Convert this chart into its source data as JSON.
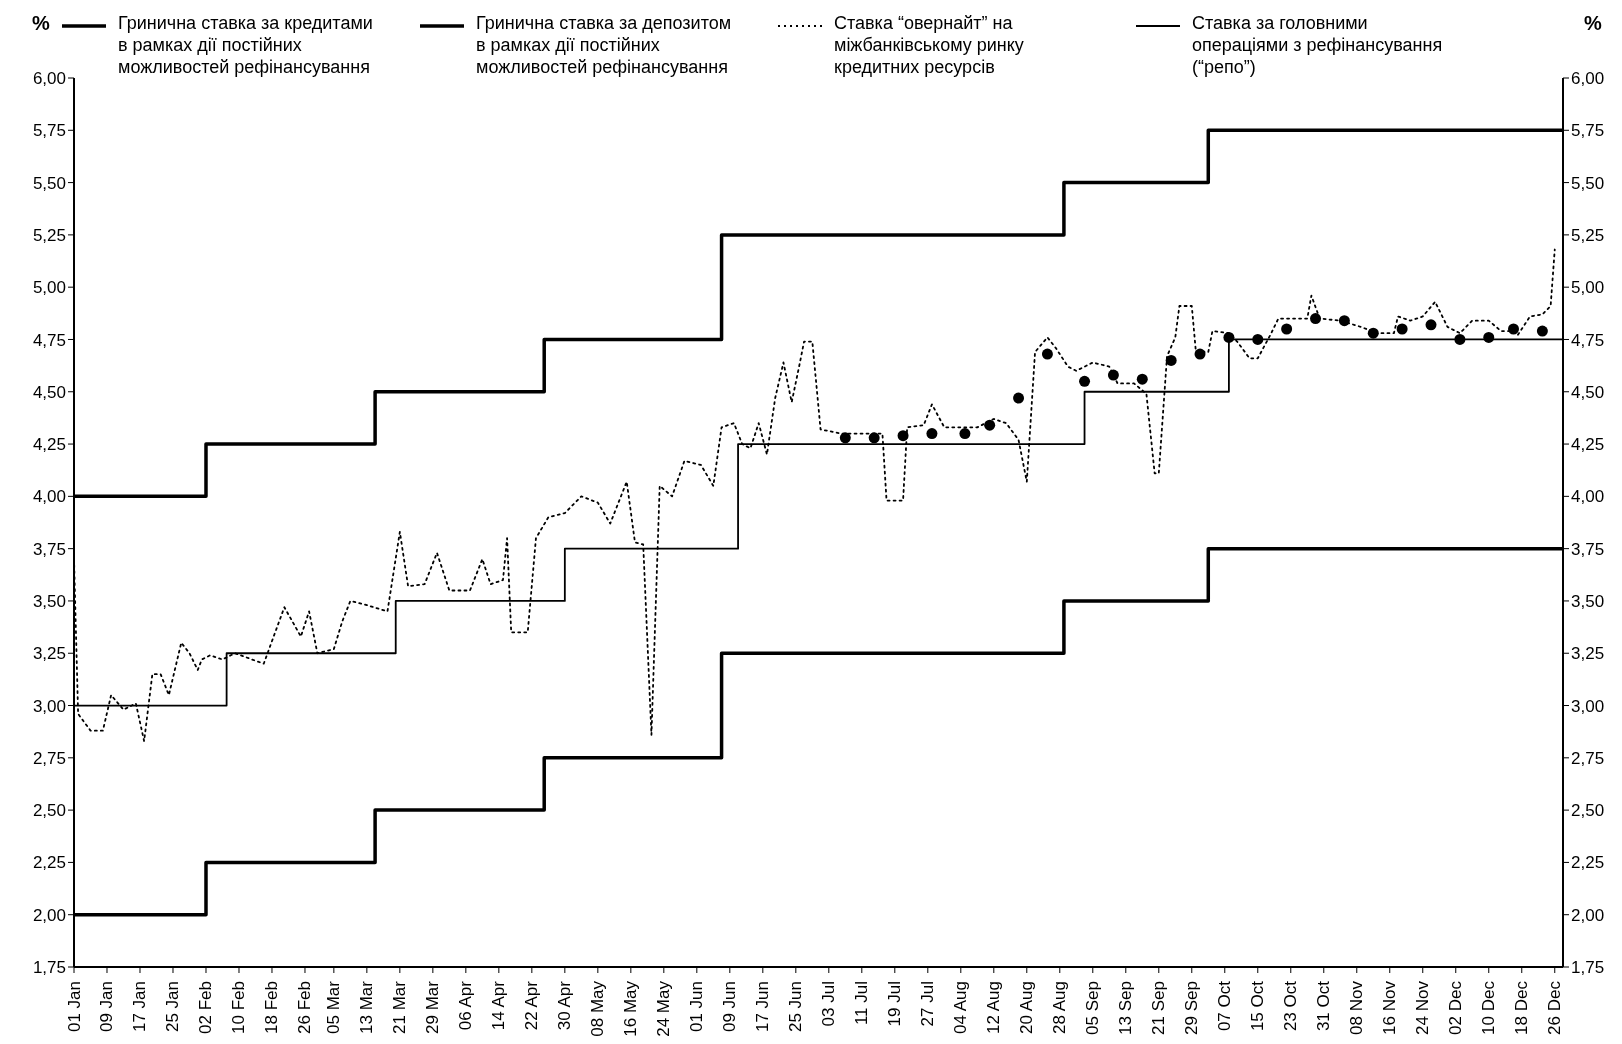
{
  "chart_data": {
    "type": "step",
    "ylabel": "%",
    "y2label": "%",
    "legend": "top",
    "xlim": [
      "--01-01",
      "--12-28"
    ],
    "xticks": [
      {
        "value": "--01-01",
        "label": "01 Jan"
      },
      {
        "value": "--01-09",
        "label": "09 Jan"
      },
      {
        "value": "--01-17",
        "label": "17 Jan"
      },
      {
        "value": "--01-25",
        "label": "25 Jan"
      },
      {
        "value": "--02-02",
        "label": "02 Feb"
      },
      {
        "value": "--02-10",
        "label": "10 Feb"
      },
      {
        "value": "--02-18",
        "label": "18 Feb"
      },
      {
        "value": "--02-26",
        "label": "26 Feb"
      },
      {
        "value": "--03-05",
        "label": "05 Mar"
      },
      {
        "value": "--03-13",
        "label": "13 Mar"
      },
      {
        "value": "--03-21",
        "label": "21 Mar"
      },
      {
        "value": "--03-29",
        "label": "29 Mar"
      },
      {
        "value": "--04-06",
        "label": "06 Apr"
      },
      {
        "value": "--04-14",
        "label": "14 Apr"
      },
      {
        "value": "--04-22",
        "label": "22 Apr"
      },
      {
        "value": "--04-30",
        "label": "30 Apr"
      },
      {
        "value": "--05-08",
        "label": "08 May"
      },
      {
        "value": "--05-16",
        "label": "16 May"
      },
      {
        "value": "--05-24",
        "label": "24 May"
      },
      {
        "value": "--06-01",
        "label": "01 Jun"
      },
      {
        "value": "--06-09",
        "label": "09 Jun"
      },
      {
        "value": "--06-17",
        "label": "17 Jun"
      },
      {
        "value": "--06-25",
        "label": "25 Jun"
      },
      {
        "value": "--07-03",
        "label": "03 Jul"
      },
      {
        "value": "--07-11",
        "label": "11 Jul"
      },
      {
        "value": "--07-19",
        "label": "19 Jul"
      },
      {
        "value": "--07-27",
        "label": "27 Jul"
      },
      {
        "value": "--08-04",
        "label": "04 Aug"
      },
      {
        "value": "--08-12",
        "label": "12 Aug"
      },
      {
        "value": "--08-20",
        "label": "20 Aug"
      },
      {
        "value": "--08-28",
        "label": "28 Aug"
      },
      {
        "value": "--09-05",
        "label": "05 Sep"
      },
      {
        "value": "--09-13",
        "label": "13 Sep"
      },
      {
        "value": "--09-21",
        "label": "21 Sep"
      },
      {
        "value": "--09-29",
        "label": "29 Sep"
      },
      {
        "value": "--10-07",
        "label": "07 Oct"
      },
      {
        "value": "--10-15",
        "label": "15 Oct"
      },
      {
        "value": "--10-23",
        "label": "23 Oct"
      },
      {
        "value": "--10-31",
        "label": "31 Oct"
      },
      {
        "value": "--11-08",
        "label": "08 Nov"
      },
      {
        "value": "--11-16",
        "label": "16 Nov"
      },
      {
        "value": "--11-24",
        "label": "24 Nov"
      },
      {
        "value": "--12-02",
        "label": "02 Dec"
      },
      {
        "value": "--12-10",
        "label": "10 Dec"
      },
      {
        "value": "--12-18",
        "label": "18 Dec"
      },
      {
        "value": "--12-26",
        "label": "26 Dec"
      }
    ],
    "ylim": [
      1.75,
      6
    ],
    "yticks": [
      {
        "value": 1.75,
        "label": "1,75"
      },
      {
        "value": 2,
        "label": "2,00"
      },
      {
        "value": 2.25,
        "label": "2,25"
      },
      {
        "value": 2.5,
        "label": "2,50"
      },
      {
        "value": 2.75,
        "label": "2,75"
      },
      {
        "value": 3,
        "label": "3,00"
      },
      {
        "value": 3.25,
        "label": "3,25"
      },
      {
        "value": 3.5,
        "label": "3,50"
      },
      {
        "value": 3.75,
        "label": "3,75"
      },
      {
        "value": 4,
        "label": "4,00"
      },
      {
        "value": 4.25,
        "label": "4,25"
      },
      {
        "value": 4.5,
        "label": "4,50"
      },
      {
        "value": 4.75,
        "label": "4,75"
      },
      {
        "value": 5,
        "label": "5,00"
      },
      {
        "value": 5.25,
        "label": "5,25"
      },
      {
        "value": 5.5,
        "label": "5,50"
      },
      {
        "value": 5.75,
        "label": "5,75"
      },
      {
        "value": 6,
        "label": "6,00"
      }
    ],
    "y2lim": [
      1.75,
      6
    ],
    "y2ticks": [
      {
        "value": 1.75,
        "label": "1,75"
      },
      {
        "value": 2,
        "label": "2,00"
      },
      {
        "value": 2.25,
        "label": "2,25"
      },
      {
        "value": 2.5,
        "label": "2,50"
      },
      {
        "value": 2.75,
        "label": "2,75"
      },
      {
        "value": 3,
        "label": "3,00"
      },
      {
        "value": 3.25,
        "label": "3,25"
      },
      {
        "value": 3.5,
        "label": "3,50"
      },
      {
        "value": 3.75,
        "label": "3,75"
      },
      {
        "value": 4,
        "label": "4,00"
      },
      {
        "value": 4.25,
        "label": "4,25"
      },
      {
        "value": 4.5,
        "label": "4,50"
      },
      {
        "value": 4.75,
        "label": "4,75"
      },
      {
        "value": 5,
        "label": "5,00"
      },
      {
        "value": 5.25,
        "label": "5,25"
      },
      {
        "value": 5.5,
        "label": "5,50"
      },
      {
        "value": 5.75,
        "label": "5,75"
      },
      {
        "value": 6,
        "label": "6,00"
      }
    ],
    "series": [
      {
        "name": "Гринична ставка за кредитами в рамках дії постійних можливостей рефінансування",
        "color": "#000000",
        "line_style": "solid",
        "x": [
          "--01-01",
          "--02-02",
          "--03-15",
          "--04-25",
          "--06-07",
          "--08-29",
          "--10-03",
          "--12-28"
        ],
        "values": [
          4,
          4.25,
          4.5,
          4.75,
          5.25,
          5.5,
          5.75,
          5.75
        ]
      },
      {
        "name": "Гринична ставка за депозитом в рамках дії постійних можливостей рефінансування",
        "color": "#000000",
        "line_style": "solid",
        "x": [
          "--01-01",
          "--02-02",
          "--03-15",
          "--04-25",
          "--06-07",
          "--08-29",
          "--10-03",
          "--12-28"
        ],
        "values": [
          2,
          2.25,
          2.5,
          2.75,
          3.25,
          3.5,
          3.75,
          3.75
        ]
      },
      {
        "name": "Ставка “овернайт” на міжбанківському ринку кредитних ресурсів",
        "type": "line",
        "color": "#000000",
        "line_style": "dotted",
        "x": [
          "--01-01",
          "--01-02",
          "--01-05",
          "--01-08",
          "--01-10",
          "--01-13",
          "--01-16",
          "--01-18",
          "--01-20",
          "--01-22",
          "--01-24",
          "--01-27",
          "--01-29",
          "--01-31",
          "--02-01",
          "--02-03",
          "--02-06",
          "--02-09",
          "--02-16",
          "--02-21",
          "--02-25",
          "--02-27",
          "--03-01",
          "--03-05",
          "--03-07",
          "--03-09",
          "--03-13",
          "--03-18",
          "--03-21",
          "--03-23",
          "--03-27",
          "--03-30",
          "--04-02",
          "--04-07",
          "--04-10",
          "--04-12",
          "--04-15",
          "--04-16",
          "--04-17",
          "--04-21",
          "--04-23",
          "--04-26",
          "--04-30",
          "--05-04",
          "--05-08",
          "--05-11",
          "--05-15",
          "--05-17",
          "--05-19",
          "--05-21",
          "--05-23",
          "--05-26",
          "--05-29",
          "--06-02",
          "--06-05",
          "--06-07",
          "--06-10",
          "--06-12",
          "--06-14",
          "--06-16",
          "--06-18",
          "--06-20",
          "--06-22",
          "--06-24",
          "--06-26",
          "--06-27",
          "--06-29",
          "--07-01",
          "--07-06",
          "--07-12",
          "--07-16",
          "--07-17",
          "--07-21",
          "--07-22",
          "--07-26",
          "--07-28",
          "--07-31",
          "--08-08",
          "--08-12",
          "--08-15",
          "--08-18",
          "--08-20",
          "--08-22",
          "--08-25",
          "--08-27",
          "--08-30",
          "--09-01",
          "--09-05",
          "--09-09",
          "--09-11",
          "--09-15",
          "--09-18",
          "--09-20",
          "--09-21",
          "--09-23",
          "--09-25",
          "--09-26",
          "--09-29",
          "--09-30",
          "--10-03",
          "--10-04",
          "--10-08",
          "--10-10",
          "--10-13",
          "--10-15",
          "--10-18",
          "--10-20",
          "--10-27",
          "--10-28",
          "--10-30",
          "--11-04",
          "--11-09",
          "--11-13",
          "--11-17",
          "--11-18",
          "--11-21",
          "--11-24",
          "--11-27",
          "--11-30",
          "--12-03",
          "--12-06",
          "--12-10",
          "--12-13",
          "--12-16",
          "--12-17",
          "--12-20",
          "--12-23",
          "--12-25",
          "--12-26"
        ],
        "values": [
          3.7,
          2.96,
          2.88,
          2.88,
          3.05,
          2.98,
          3.01,
          2.83,
          3.15,
          3.15,
          3.05,
          3.3,
          3.25,
          3.17,
          3.22,
          3.24,
          3.22,
          3.25,
          3.2,
          3.47,
          3.33,
          3.45,
          3.25,
          3.27,
          3.4,
          3.5,
          3.48,
          3.45,
          3.83,
          3.57,
          3.58,
          3.73,
          3.55,
          3.55,
          3.7,
          3.58,
          3.6,
          3.8,
          3.35,
          3.35,
          3.8,
          3.9,
          3.92,
          4.0,
          3.97,
          3.87,
          4.07,
          3.78,
          3.77,
          2.86,
          4.05,
          4.0,
          4.17,
          4.15,
          4.05,
          4.33,
          4.35,
          4.25,
          4.23,
          4.35,
          4.2,
          4.47,
          4.64,
          4.45,
          4.64,
          4.74,
          4.74,
          4.32,
          4.3,
          4.3,
          4.3,
          3.98,
          3.98,
          4.33,
          4.34,
          4.44,
          4.33,
          4.33,
          4.37,
          4.35,
          4.27,
          4.07,
          4.69,
          4.76,
          4.71,
          4.62,
          4.6,
          4.64,
          4.62,
          4.54,
          4.54,
          4.49,
          4.11,
          4.11,
          4.67,
          4.76,
          4.91,
          4.91,
          4.69,
          4.69,
          4.79,
          4.78,
          4.74,
          4.66,
          4.66,
          4.77,
          4.85,
          4.85,
          4.96,
          4.85,
          4.84,
          4.81,
          4.78,
          4.78,
          4.86,
          4.84,
          4.86,
          4.93,
          4.81,
          4.78,
          4.84,
          4.84,
          4.79,
          4.79,
          4.77,
          4.86,
          4.87,
          4.91,
          5.18
        ]
      },
      {
        "name": "Ставка за головними операціями з рефінансування (“репо”)",
        "color": "#000000",
        "line_style": "solid",
        "x": [
          "--01-01",
          "--02-07",
          "--03-20",
          "--04-30",
          "--06-11",
          "--09-03",
          "--10-08",
          "--12-28"
        ],
        "values": [
          3,
          3.25,
          3.5,
          3.75,
          4.25,
          4.5,
          4.75,
          4.75
        ]
      },
      {
        "type": "scatter",
        "color": "#000000",
        "marker": "circle",
        "x": [
          "--07-07",
          "--07-14",
          "--07-21",
          "--07-28",
          "--08-05",
          "--08-11",
          "--08-18",
          "--08-25",
          "--09-03",
          "--09-10",
          "--09-17",
          "--09-24",
          "--10-01",
          "--10-08",
          "--10-15",
          "--10-22",
          "--10-29",
          "--11-05",
          "--11-12",
          "--11-19",
          "--11-26",
          "--12-03",
          "--12-10",
          "--12-16",
          "--12-23"
        ],
        "values": [
          4.28,
          4.28,
          4.29,
          4.3,
          4.3,
          4.34,
          4.47,
          4.68,
          4.55,
          4.58,
          4.56,
          4.65,
          4.68,
          4.76,
          4.75,
          4.8,
          4.85,
          4.84,
          4.78,
          4.8,
          4.82,
          4.75,
          4.76,
          4.8,
          4.79
        ]
      }
    ]
  }
}
